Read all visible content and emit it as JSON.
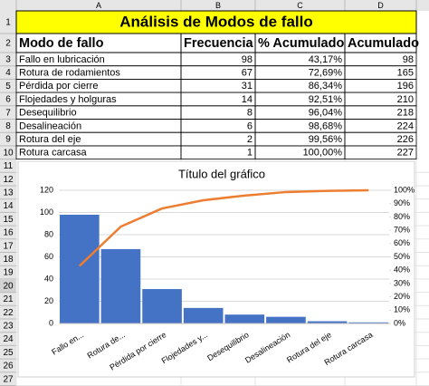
{
  "column_headers": [
    "A",
    "B",
    "C",
    "D"
  ],
  "row_headers": [
    1,
    2,
    3,
    4,
    5,
    6,
    7,
    8,
    9,
    10,
    11,
    12,
    13,
    14,
    15,
    16,
    17,
    18,
    19,
    20,
    21,
    22,
    23,
    24,
    25,
    26,
    27
  ],
  "table": {
    "title": "Análisis de Modos de fallo",
    "header": [
      "Modo de fallo",
      "Frecuencia",
      "% Acumulado",
      "Acumulado"
    ],
    "rows": [
      [
        "Fallo en lubricación",
        98,
        "43,17%",
        98
      ],
      [
        "Rotura de rodamientos",
        67,
        "72,69%",
        165
      ],
      [
        "Pérdida por cierre",
        31,
        "86,34%",
        196
      ],
      [
        "Flojedades y holguras",
        14,
        "92,51%",
        210
      ],
      [
        "Desequilibrio",
        8,
        "96,04%",
        218
      ],
      [
        "Desalineación",
        6,
        "98,68%",
        224
      ],
      [
        "Rotura del eje",
        2,
        "99,56%",
        226
      ],
      [
        "Rotura carcasa",
        1,
        "100,00%",
        227
      ]
    ]
  },
  "chart_data": {
    "type": "bar",
    "title": "Título del gráfico",
    "categories": [
      "Fallo en...",
      "Rotura de...",
      "Pérdida por cierre",
      "Flojedades y...",
      "Desequilibrio",
      "Desalineación",
      "Rotura del eje",
      "Rotura carcasa"
    ],
    "series": [
      {
        "type": "bar",
        "color": "#4472c4",
        "values": [
          98,
          67,
          31,
          14,
          8,
          6,
          2,
          1
        ]
      },
      {
        "type": "line",
        "axis": "y2",
        "color": "#ed7d31",
        "values": [
          43.17,
          72.69,
          86.34,
          92.51,
          96.04,
          98.68,
          99.56,
          100
        ]
      }
    ],
    "ylim": [
      0,
      120
    ],
    "yticks": [
      0,
      20,
      40,
      60,
      80,
      100,
      120
    ],
    "y2lim": [
      0,
      100
    ],
    "y2ticks": [
      {
        "value": 0,
        "label": "0%"
      },
      {
        "value": 10,
        "label": "10%"
      },
      {
        "value": 20,
        "label": "20%"
      },
      {
        "value": 30,
        "label": "30%"
      },
      {
        "value": 40,
        "label": "40%"
      },
      {
        "value": 50,
        "label": "50%"
      },
      {
        "value": 60,
        "label": "60%"
      },
      {
        "value": 70,
        "label": "70%"
      },
      {
        "value": 80,
        "label": "80%"
      },
      {
        "value": 90,
        "label": "90%"
      },
      {
        "value": 100,
        "label": "100%"
      }
    ],
    "grid": true
  }
}
